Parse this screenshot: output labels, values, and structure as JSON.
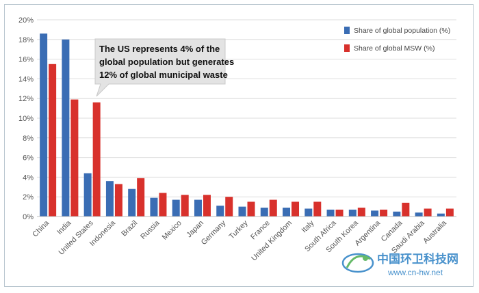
{
  "chart_data": {
    "type": "bar",
    "title": "",
    "xlabel": "",
    "ylabel": "",
    "ylim": [
      0,
      20
    ],
    "yticks": [
      "0%",
      "2%",
      "4%",
      "6%",
      "8%",
      "10%",
      "12%",
      "14%",
      "16%",
      "18%",
      "20%"
    ],
    "grid": true,
    "legend_position": "top-right",
    "categories": [
      "China",
      "India",
      "United States",
      "Indonesia",
      "Brazil",
      "Russia",
      "Mexico",
      "Japan",
      "Germany",
      "Turkey",
      "France",
      "United Kingdom",
      "Italy",
      "South Africa",
      "South Korea",
      "Argentina",
      "Canada",
      "Saudi Arabia",
      "Australia"
    ],
    "series": [
      {
        "name": "Share of global population (%)",
        "color": "#3a6db4",
        "values": [
          18.6,
          18.0,
          4.4,
          3.6,
          2.8,
          1.9,
          1.7,
          1.7,
          1.1,
          1.0,
          0.9,
          0.9,
          0.8,
          0.7,
          0.7,
          0.6,
          0.5,
          0.4,
          0.3
        ]
      },
      {
        "name": "Share of global MSW (%)",
        "color": "#d8312c",
        "values": [
          15.5,
          11.9,
          11.6,
          3.3,
          3.9,
          2.4,
          2.2,
          2.2,
          2.0,
          1.5,
          1.7,
          1.5,
          1.5,
          0.7,
          0.9,
          0.7,
          1.4,
          0.8,
          0.8
        ]
      }
    ],
    "annotation": {
      "lines": [
        "The US represents 4% of the",
        "global population but generates",
        "12% of global municipal waste"
      ],
      "target_category": "United States"
    }
  },
  "watermark": {
    "name": "中国环卫科技网",
    "url": "www.cn-hw.net"
  }
}
